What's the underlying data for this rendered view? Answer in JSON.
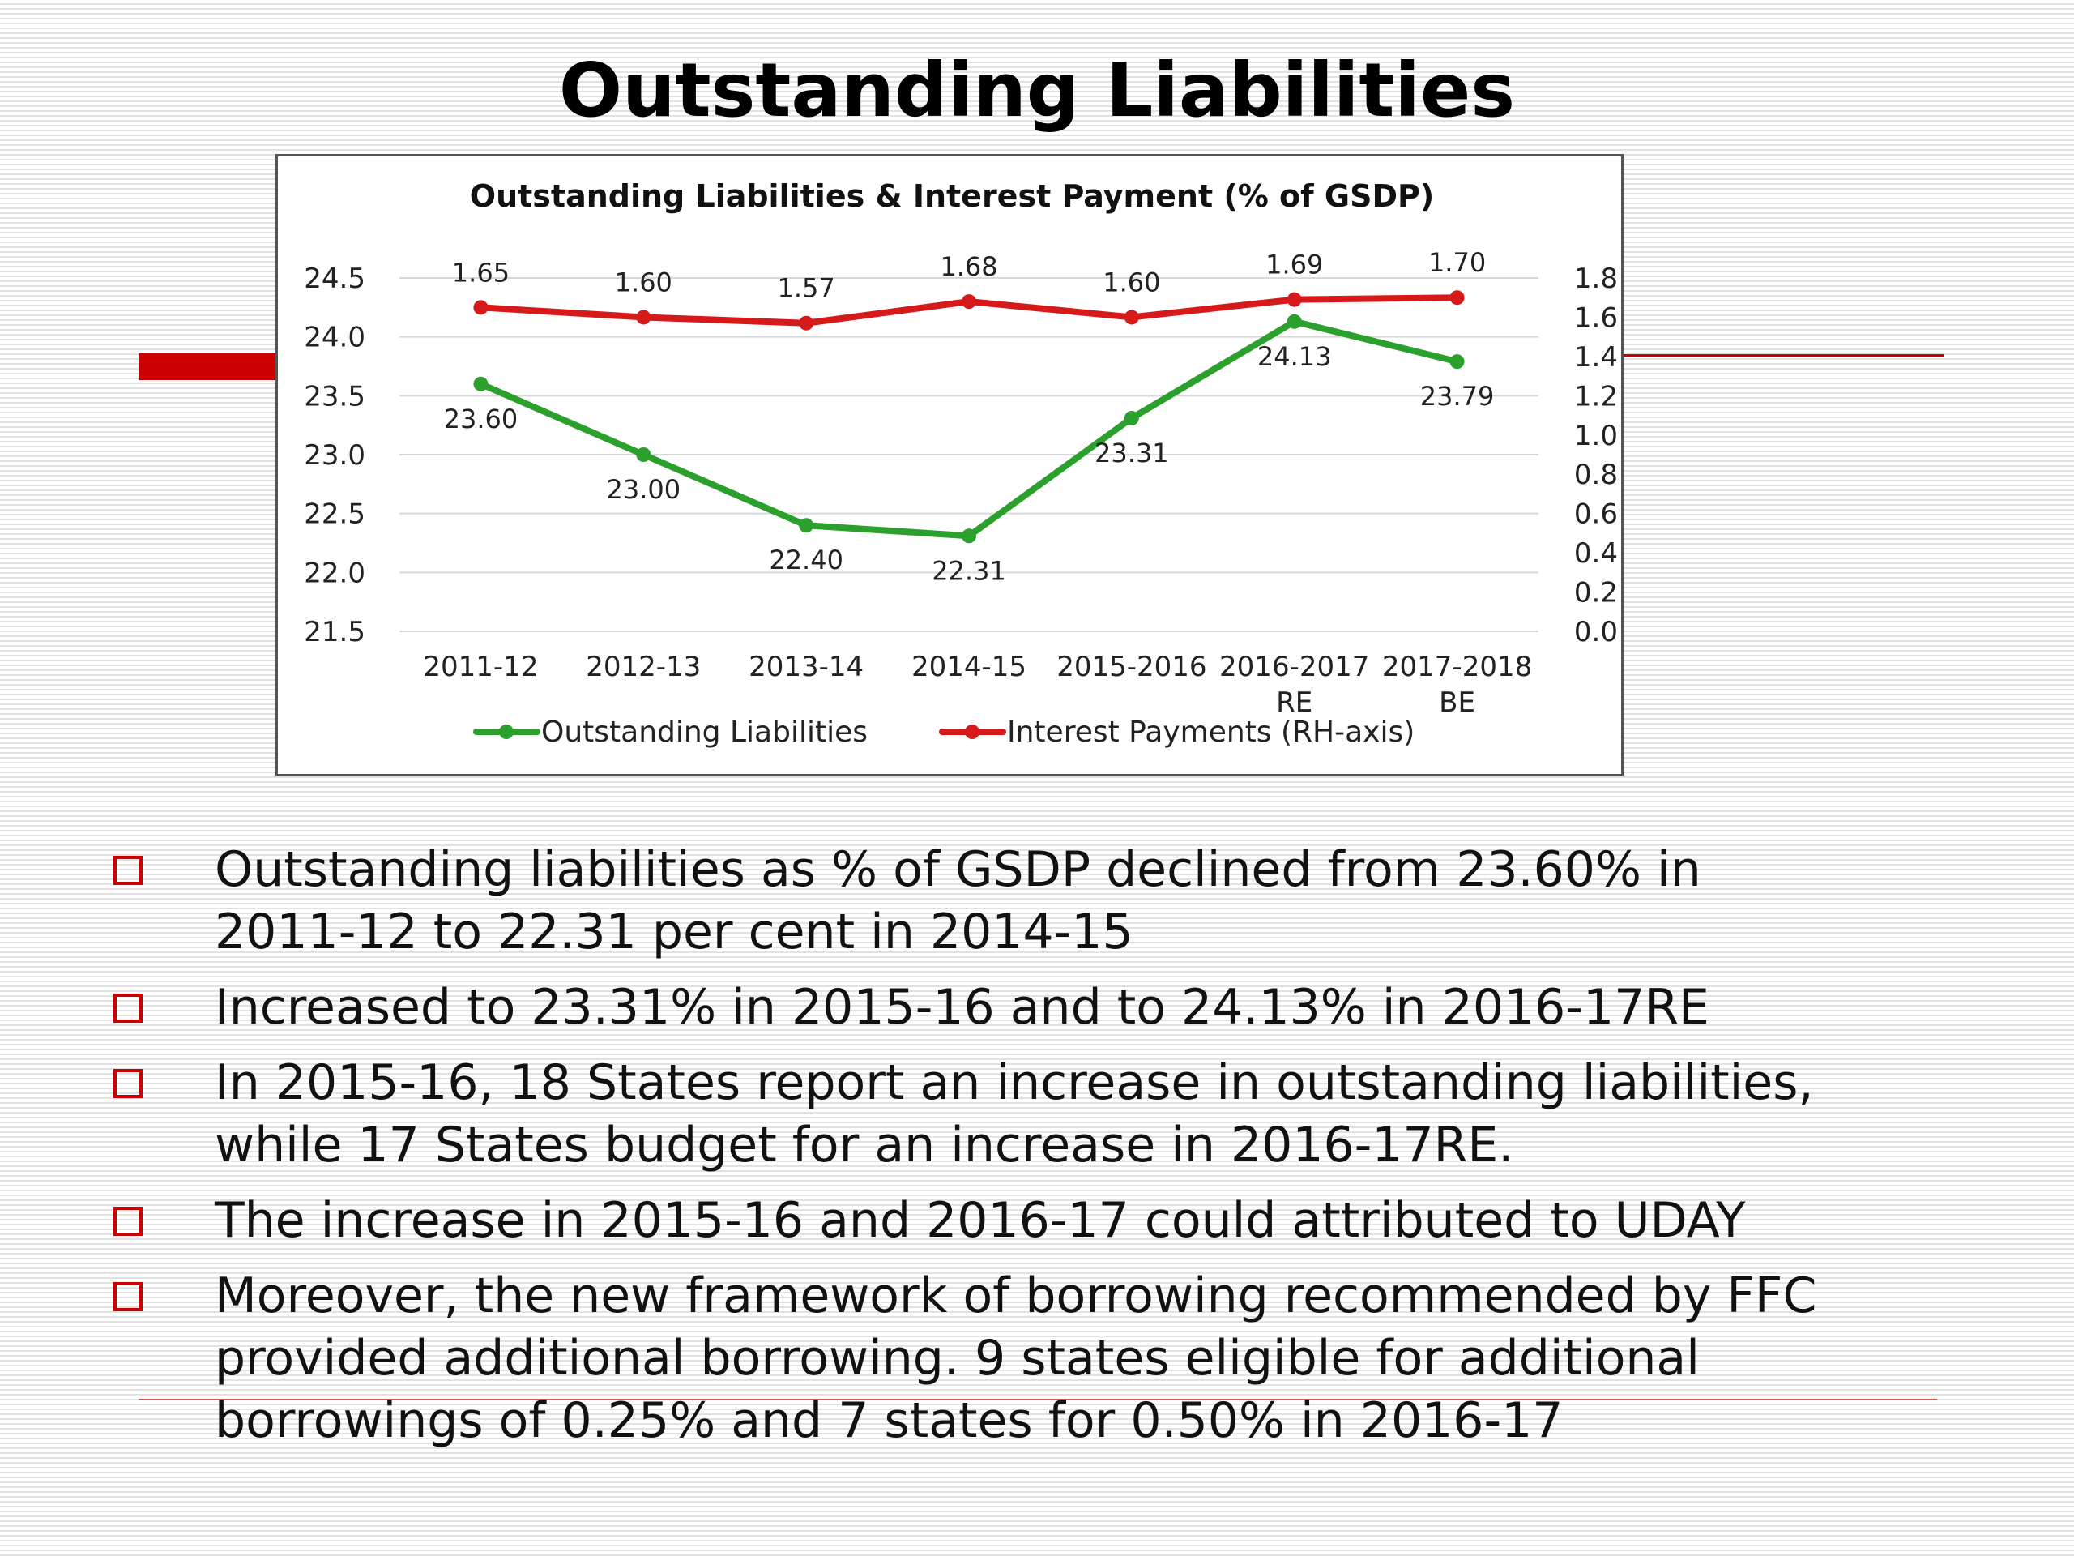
{
  "slide": {
    "title": "Outstanding Liabilities",
    "accent_color": "#cc0000"
  },
  "chart_data": {
    "type": "line",
    "title": "Outstanding Liabilities & Interest Payment (% of GSDP)",
    "categories": [
      [
        "2011-12"
      ],
      [
        "2012-13"
      ],
      [
        "2013-14"
      ],
      [
        "2014-15"
      ],
      [
        "2015-2016"
      ],
      [
        "2016-2017",
        "RE"
      ],
      [
        "2017-2018",
        "BE"
      ]
    ],
    "y_left": {
      "ticks": [
        "24.5",
        "24.0",
        "23.5",
        "23.0",
        "22.5",
        "22.0",
        "21.5"
      ],
      "range": [
        21.5,
        24.5
      ]
    },
    "y_right": {
      "ticks": [
        "1.8",
        "1.6",
        "1.4",
        "1.2",
        "1.0",
        "0.8",
        "0.6",
        "0.4",
        "0.2",
        "0.0"
      ],
      "range": [
        0.0,
        1.8
      ]
    },
    "grid": true,
    "legend_position": "bottom",
    "series": [
      {
        "name": "Outstanding Liabilities",
        "axis": "left",
        "color": "#2ca02c",
        "values": [
          23.6,
          23.0,
          22.4,
          22.31,
          23.31,
          24.13,
          23.79
        ],
        "labels": [
          "23.60",
          "23.00",
          "22.40",
          "22.31",
          "23.31",
          "24.13",
          "23.79"
        ],
        "label_placement": "below"
      },
      {
        "name": "Interest Payments (RH-axis)",
        "axis": "right",
        "color": "#d61a1a",
        "values": [
          1.65,
          1.6,
          1.57,
          1.68,
          1.6,
          1.69,
          1.7
        ],
        "labels": [
          "1.65",
          "1.60",
          "1.57",
          "1.68",
          "1.60",
          "1.69",
          "1.70"
        ],
        "label_placement": "above"
      }
    ]
  },
  "bullets": [
    {
      "lines": [
        "Outstanding liabilities as % of GSDP declined from 23.60% in",
        "2011-12 to 22.31 per cent in 2014-15"
      ]
    },
    {
      "lines": [
        "Increased to 23.31% in 2015-16 and to 24.13% in 2016-17RE"
      ]
    },
    {
      "lines": [
        "In 2015-16, 18 States report an increase in outstanding liabilities,",
        "while 17 States budget for an increase in 2016-17RE."
      ]
    },
    {
      "lines": [
        "The increase in 2015-16 and 2016-17 could attributed to UDAY"
      ]
    },
    {
      "lines": [
        "Moreover, the new framework of borrowing recommended by FFC",
        "provided additional borrowing. 9 states eligible for additional",
        "borrowings of 0.25% and 7 states for 0.50% in 2016-17"
      ]
    }
  ]
}
